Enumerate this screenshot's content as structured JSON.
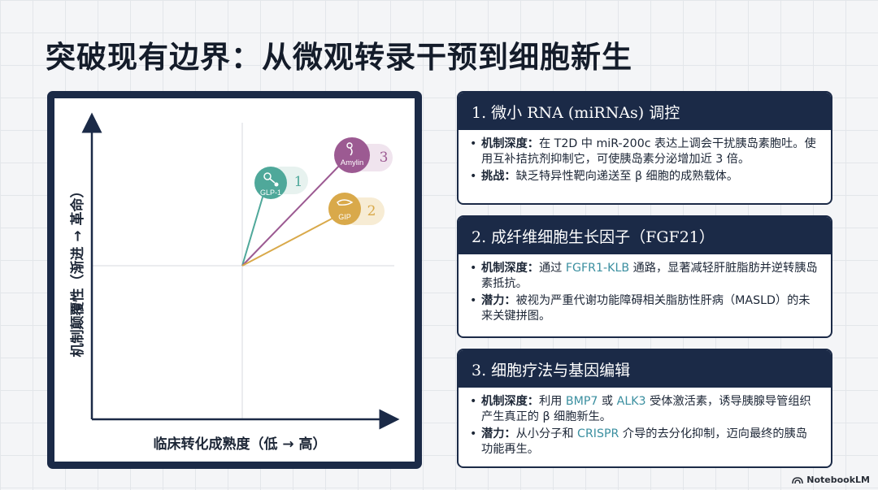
{
  "title": "突破现有边界：从微观转录干预到细胞新生",
  "chart": {
    "ylabel": "机制颠覆性（渐进 → 革命）",
    "xlabel": "临床转化成熟度（低 → 高）",
    "points": [
      {
        "label": "GLP-1",
        "number": "1",
        "color": "#4fa89a",
        "icon": "molecule-icon"
      },
      {
        "label": "Amylin",
        "number": "3",
        "color": "#9c5a92",
        "icon": "peptide-icon"
      },
      {
        "label": "GIP",
        "number": "2",
        "color": "#d9a94a",
        "icon": "pancreas-icon"
      }
    ]
  },
  "cards": [
    {
      "title": "1. 微小 RNA (miRNAs) 调控",
      "bullets": [
        {
          "label": "机制深度：",
          "parts": [
            "在 T2D 中 miR-200c 表达上调会干扰胰岛素胞吐。使用互补拮抗剂抑制它，可使胰岛素分泌增加近 3 倍。"
          ]
        },
        {
          "label": "挑战：",
          "parts": [
            "缺乏特异性靶向递送至 β 细胞的成熟载体。"
          ]
        }
      ]
    },
    {
      "title": "2. 成纤维细胞生长因子（FGF21）",
      "bullets": [
        {
          "label": "机制深度：",
          "parts": [
            "通过 ",
            "FGFR1-KLB",
            " 通路，显著减轻肝脏脂肪并逆转胰岛素抵抗。"
          ]
        },
        {
          "label": "潜力：",
          "parts": [
            "被视为严重代谢功能障碍相关脂肪性肝病（MASLD）的未来关键拼图。"
          ]
        }
      ]
    },
    {
      "title": "3. 细胞疗法与基因编辑",
      "bullets": [
        {
          "label": "机制深度：",
          "parts": [
            "利用 ",
            "BMP7",
            " 或 ",
            "ALK3",
            " 受体激活素，诱导胰腺导管组织产生真正的 β 细胞新生。"
          ]
        },
        {
          "label": "潜力：",
          "parts": [
            "从小分子和 ",
            "CRISPR",
            " 介导的去分化抑制，迈向最终的胰岛功能再生。"
          ]
        }
      ]
    }
  ],
  "brand": "NotebookLM"
}
